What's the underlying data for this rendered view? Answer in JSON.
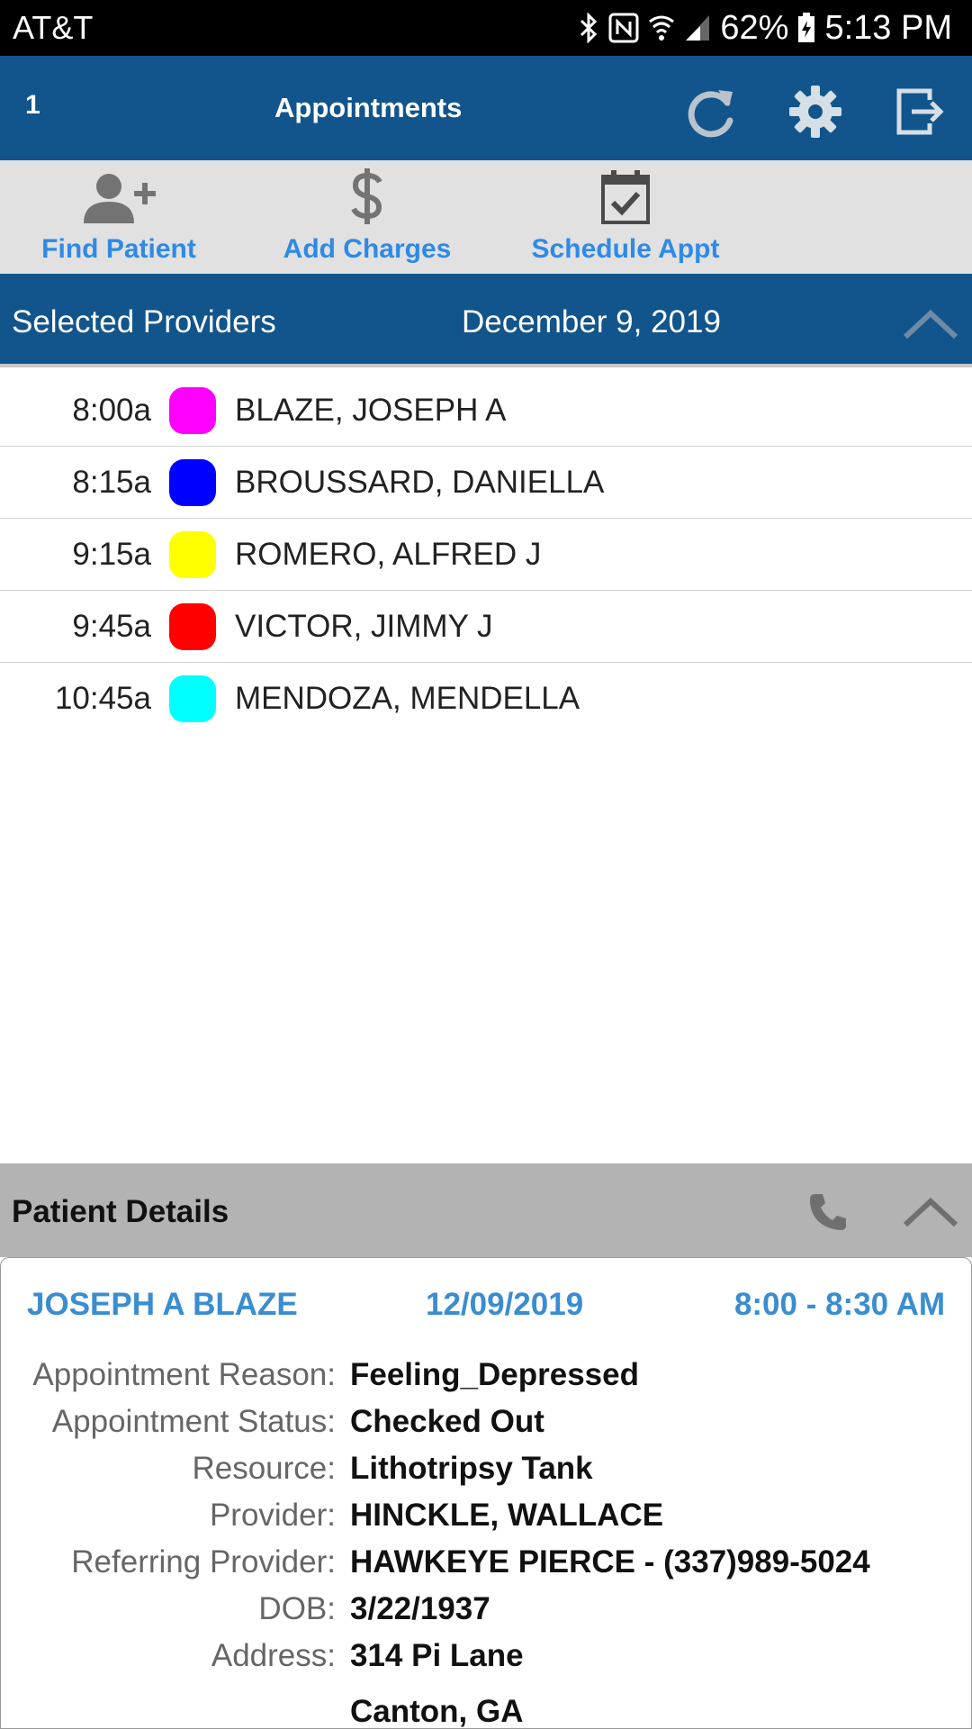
{
  "status_bar": {
    "carrier": "AT&T",
    "battery": "62%",
    "time": "5:13 PM"
  },
  "app_bar": {
    "counter": "1",
    "title": "Appointments"
  },
  "toolbar": {
    "find_patient": "Find Patient",
    "add_charges": "Add Charges",
    "schedule_appt": "Schedule Appt"
  },
  "provider_bar": {
    "label": "Selected Providers",
    "date": "December 9, 2019"
  },
  "appointments": [
    {
      "time": "8:00a",
      "name": "BLAZE, JOSEPH A",
      "color": "#ff00ff"
    },
    {
      "time": "8:15a",
      "name": "BROUSSARD, DANIELLA",
      "color": "#0000ff"
    },
    {
      "time": "9:15a",
      "name": "ROMERO, ALFRED J",
      "color": "#ffff00"
    },
    {
      "time": "9:45a",
      "name": "VICTOR, JIMMY J",
      "color": "#ff0000"
    },
    {
      "time": "10:45a",
      "name": "MENDOZA, MENDELLA",
      "color": "#00ffff"
    }
  ],
  "patient_details": {
    "title": "Patient Details",
    "patient_name": "JOSEPH A BLAZE",
    "date": "12/09/2019",
    "time": "8:00 - 8:30 AM",
    "fields": [
      {
        "label": "Appointment Reason:",
        "value": "Feeling_Depressed"
      },
      {
        "label": "Appointment Status:",
        "value": "Checked Out"
      },
      {
        "label": "Resource:",
        "value": "Lithotripsy Tank"
      },
      {
        "label": "Provider:",
        "value": "HINCKLE, WALLACE"
      },
      {
        "label": "Referring Provider:",
        "value": "HAWKEYE PIERCE - (337)989-5024"
      },
      {
        "label": "DOB:",
        "value": "3/22/1937"
      },
      {
        "label": "Address:",
        "value": "314 Pi Lane"
      },
      {
        "label": "",
        "value": "Canton, GA"
      }
    ]
  },
  "colors": {
    "app_bar": "#11558c",
    "toolbar_bg": "#e1e1e1",
    "link_blue": "#2e8ae6",
    "detail_blue": "#3a8dd1",
    "details_header": "#b3b3b3"
  },
  "icons": [
    "bluetooth-icon",
    "nfc-icon",
    "wifi-icon",
    "signal-icon",
    "battery-charging-icon",
    "refresh-icon",
    "gear-icon",
    "logout-icon",
    "add-person-icon",
    "dollar-icon",
    "calendar-check-icon",
    "chevron-up-icon",
    "phone-icon"
  ]
}
